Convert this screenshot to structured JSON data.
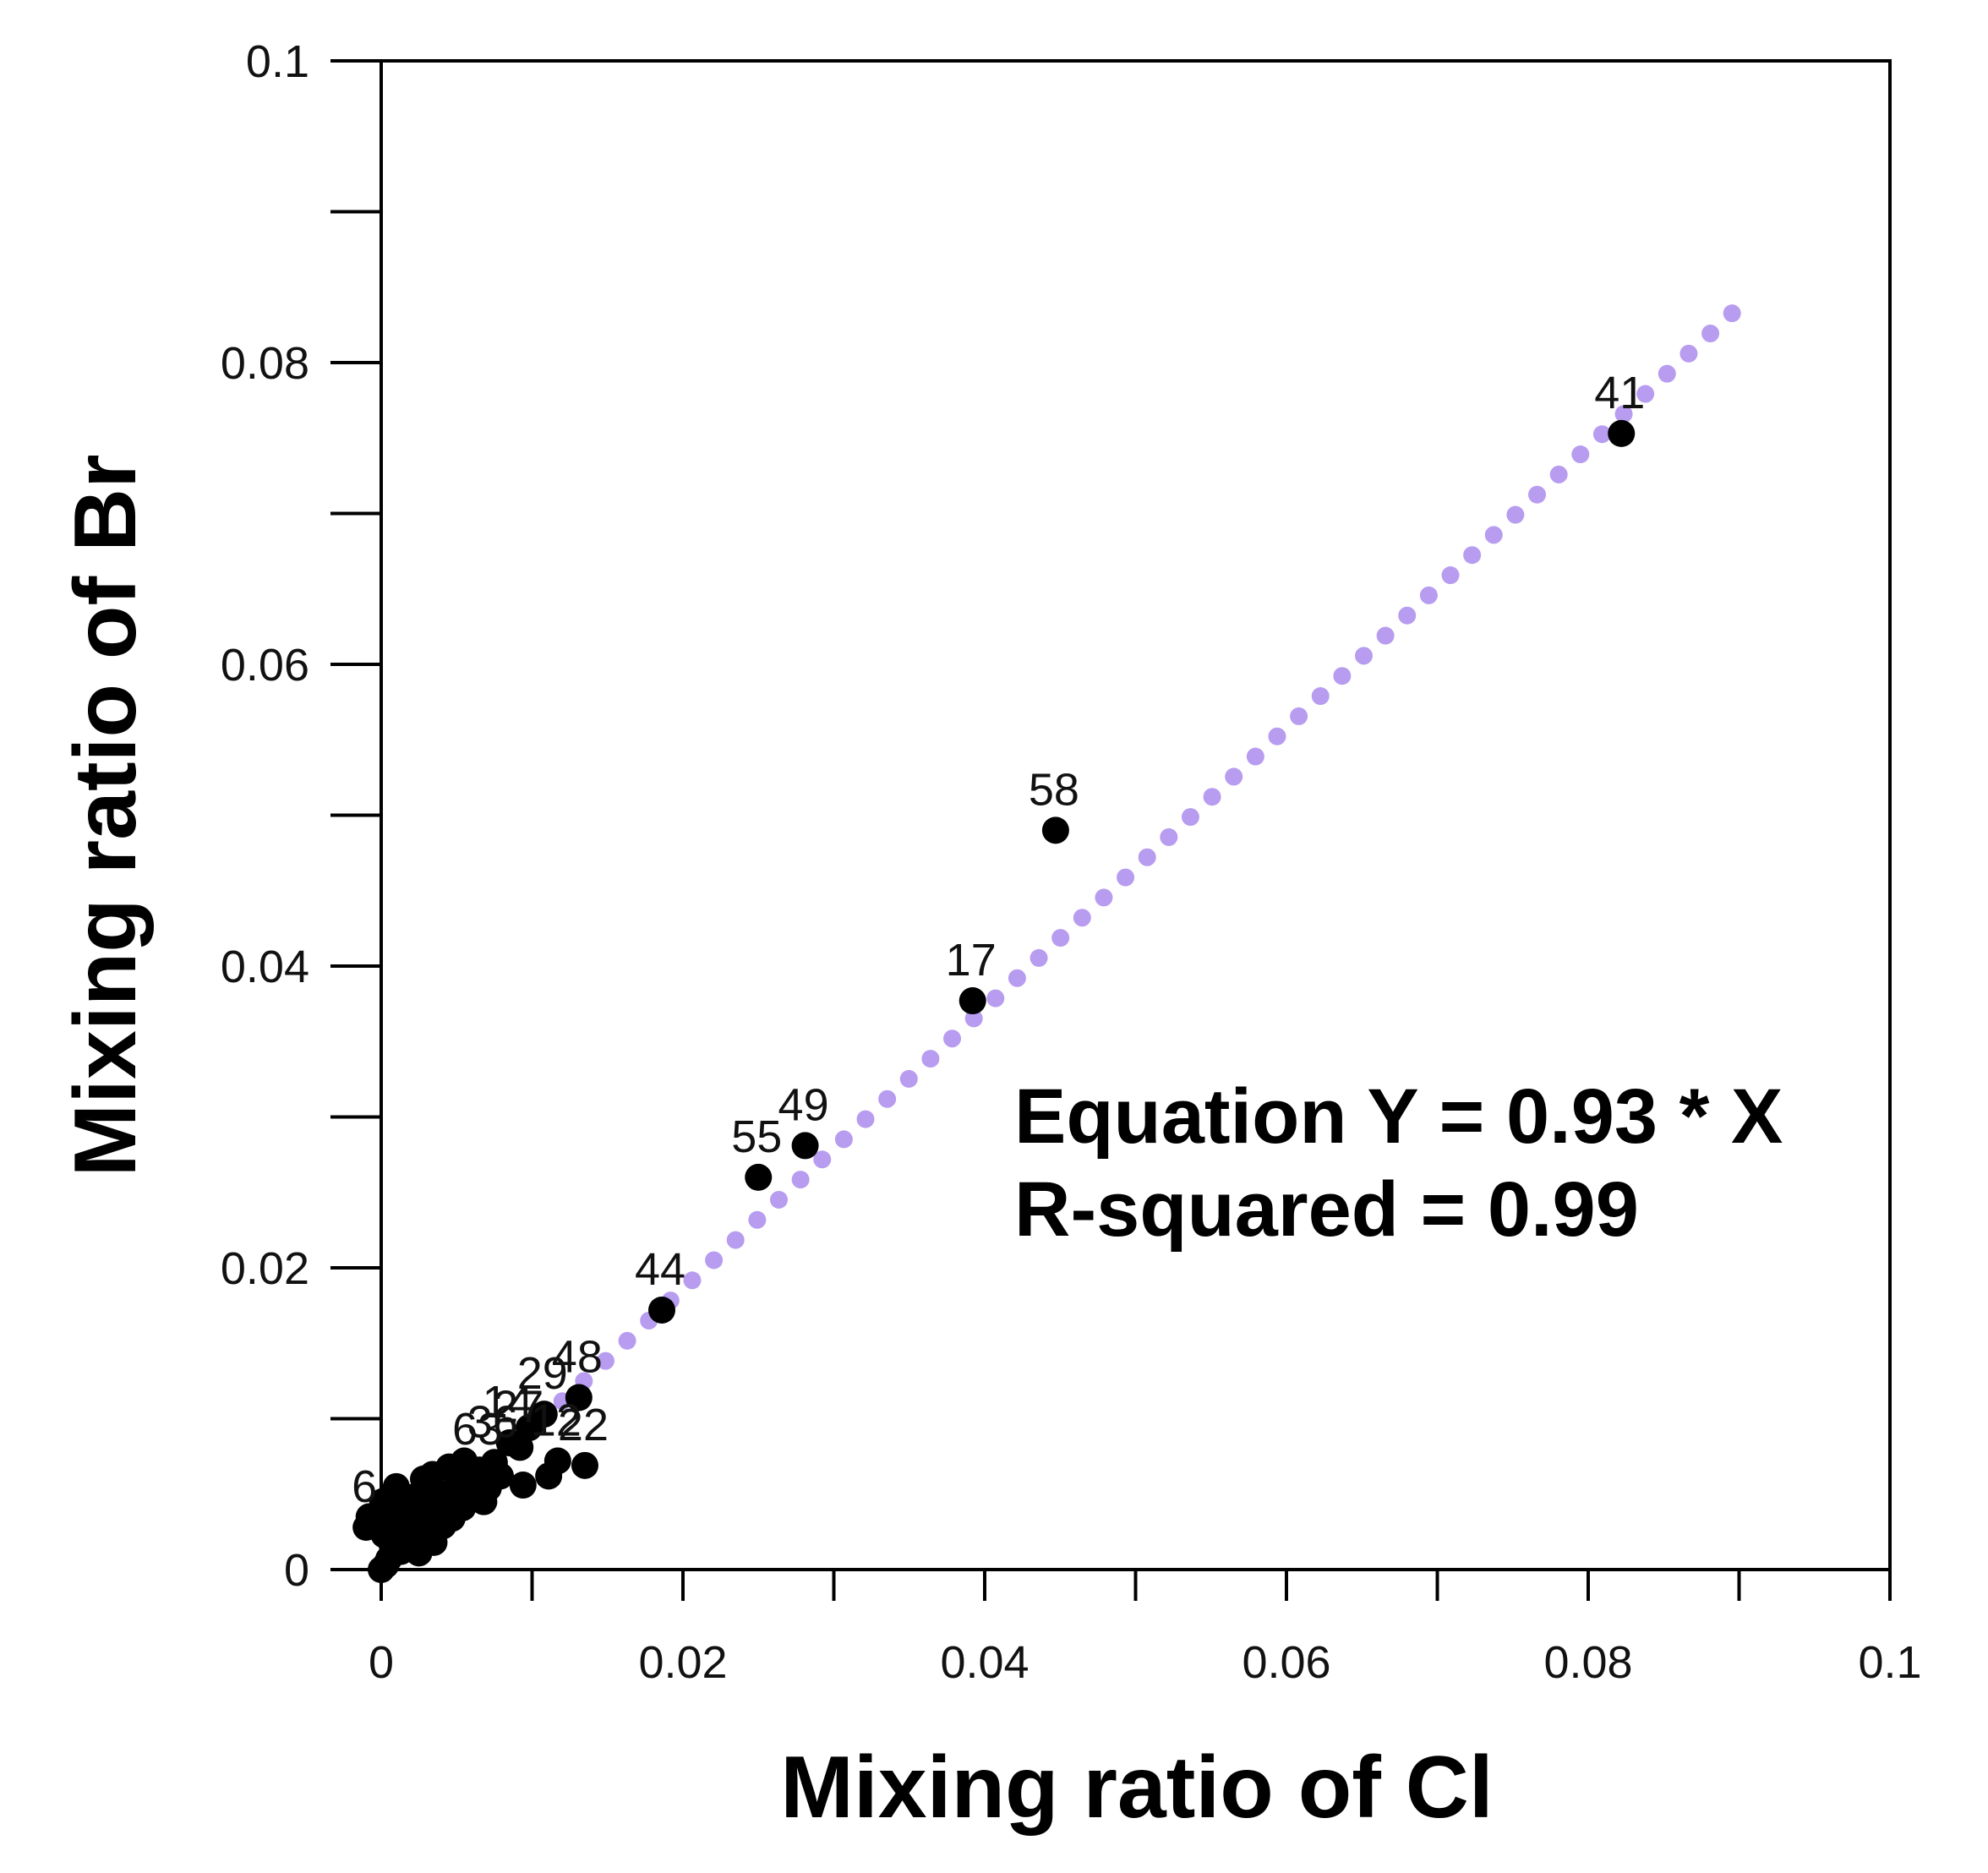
{
  "chart_data": {
    "type": "scatter",
    "xlabel": "Mixing ratio of Cl",
    "ylabel": "Mixing ratio of Br",
    "xlim": [
      0,
      0.1
    ],
    "ylim": [
      0,
      0.1
    ],
    "x_ticks": [
      "0",
      "0.02",
      "0.04",
      "0.06",
      "0.08",
      "0.1"
    ],
    "y_ticks": [
      "0",
      "0.02",
      "0.04",
      "0.06",
      "0.08",
      "0.1"
    ],
    "grid": false,
    "colors": {
      "points": "#000000",
      "fit_line": "#b79cf0"
    },
    "fit_line": {
      "slope": 0.93,
      "x_range": [
        0.012,
        0.09
      ],
      "style": "dotted"
    },
    "annotation": {
      "equation": "Equation Y = 0.93 * X",
      "r_squared": "R-squared = 0.99"
    },
    "points": [
      {
        "x": 0.0822,
        "y": 0.0753,
        "label": "41"
      },
      {
        "x": 0.0447,
        "y": 0.049,
        "label": "58"
      },
      {
        "x": 0.0392,
        "y": 0.0377,
        "label": "17"
      },
      {
        "x": 0.0281,
        "y": 0.0281,
        "label": "49"
      },
      {
        "x": 0.025,
        "y": 0.026,
        "label": "55"
      },
      {
        "x": 0.0186,
        "y": 0.0172,
        "label": "44"
      },
      {
        "x": 0.0131,
        "y": 0.0114,
        "label": "48"
      },
      {
        "x": 0.0135,
        "y": 0.0069,
        "label": "22"
      },
      {
        "x": 0.0117,
        "y": 0.0072,
        "label": "12"
      },
      {
        "x": 0.0111,
        "y": 0.0062,
        "label": ""
      },
      {
        "x": 0.0108,
        "y": 0.0103,
        "label": "29"
      },
      {
        "x": 0.0098,
        "y": 0.0094,
        "label": ""
      },
      {
        "x": 0.0092,
        "y": 0.0081,
        "label": "27"
      },
      {
        "x": 0.0094,
        "y": 0.0056,
        "label": ""
      },
      {
        "x": 0.0085,
        "y": 0.0084,
        "label": "14"
      },
      {
        "x": 0.0079,
        "y": 0.0062,
        "label": ""
      },
      {
        "x": 0.0075,
        "y": 0.0071,
        "label": "36"
      },
      {
        "x": 0.0071,
        "y": 0.0054,
        "label": ""
      },
      {
        "x": 0.0065,
        "y": 0.0066,
        "label": "63"
      },
      {
        "x": 0.0061,
        "y": 0.0049,
        "label": ""
      },
      {
        "x": 0.0058,
        "y": 0.0058,
        "label": ""
      },
      {
        "x": 0.0054,
        "y": 0.0041,
        "label": ""
      },
      {
        "x": 0.005,
        "y": 0.0055,
        "label": ""
      },
      {
        "x": 0.0047,
        "y": 0.0034,
        "label": ""
      },
      {
        "x": 0.0044,
        "y": 0.0047,
        "label": ""
      },
      {
        "x": 0.0041,
        "y": 0.0029,
        "label": ""
      },
      {
        "x": 0.0038,
        "y": 0.004,
        "label": ""
      },
      {
        "x": 0.0036,
        "y": 0.0052,
        "label": ""
      },
      {
        "x": 0.0033,
        "y": 0.0025,
        "label": ""
      },
      {
        "x": 0.0031,
        "y": 0.0036,
        "label": ""
      },
      {
        "x": 0.0029,
        "y": 0.0045,
        "label": ""
      },
      {
        "x": 0.0026,
        "y": 0.002,
        "label": ""
      },
      {
        "x": 0.0024,
        "y": 0.0031,
        "label": ""
      },
      {
        "x": 0.0022,
        "y": 0.0042,
        "label": ""
      },
      {
        "x": 0.002,
        "y": 0.0015,
        "label": ""
      },
      {
        "x": 0.0018,
        "y": 0.0026,
        "label": ""
      },
      {
        "x": 0.0017,
        "y": 0.0048,
        "label": ""
      },
      {
        "x": 0.0015,
        "y": 0.0037,
        "label": ""
      },
      {
        "x": 0.0013,
        "y": 0.0012,
        "label": ""
      },
      {
        "x": 0.0012,
        "y": 0.0022,
        "label": ""
      },
      {
        "x": 0.001,
        "y": 0.0055,
        "label": ""
      },
      {
        "x": 0.0009,
        "y": 0.0033,
        "label": ""
      },
      {
        "x": 0.0008,
        "y": 0.0043,
        "label": ""
      },
      {
        "x": 0.0007,
        "y": 0.0017,
        "label": ""
      },
      {
        "x": 0.0006,
        "y": 0.0028,
        "label": ""
      },
      {
        "x": 0.0005,
        "y": 0.0007,
        "label": ""
      },
      {
        "x": 0.0004,
        "y": 0.0038,
        "label": ""
      },
      {
        "x": 0.0003,
        "y": 0.0003,
        "label": ""
      },
      {
        "x": 0.0002,
        "y": 0.0023,
        "label": ""
      },
      {
        "x": 0.0001,
        "y": 0.0045,
        "label": ""
      },
      {
        "x": 0.0,
        "y": 0.0,
        "label": ""
      },
      {
        "x": -0.0008,
        "y": 0.0035,
        "label": ""
      },
      {
        "x": -0.001,
        "y": 0.0028,
        "label": "6"
      },
      {
        "x": 0.0028,
        "y": 0.006,
        "label": ""
      },
      {
        "x": 0.0034,
        "y": 0.0063,
        "label": ""
      },
      {
        "x": 0.0045,
        "y": 0.0068,
        "label": ""
      },
      {
        "x": 0.0055,
        "y": 0.0072,
        "label": ""
      },
      {
        "x": 0.0025,
        "y": 0.0011,
        "label": ""
      },
      {
        "x": 0.0035,
        "y": 0.0018,
        "label": ""
      },
      {
        "x": 0.0068,
        "y": 0.0045,
        "label": ""
      }
    ]
  }
}
